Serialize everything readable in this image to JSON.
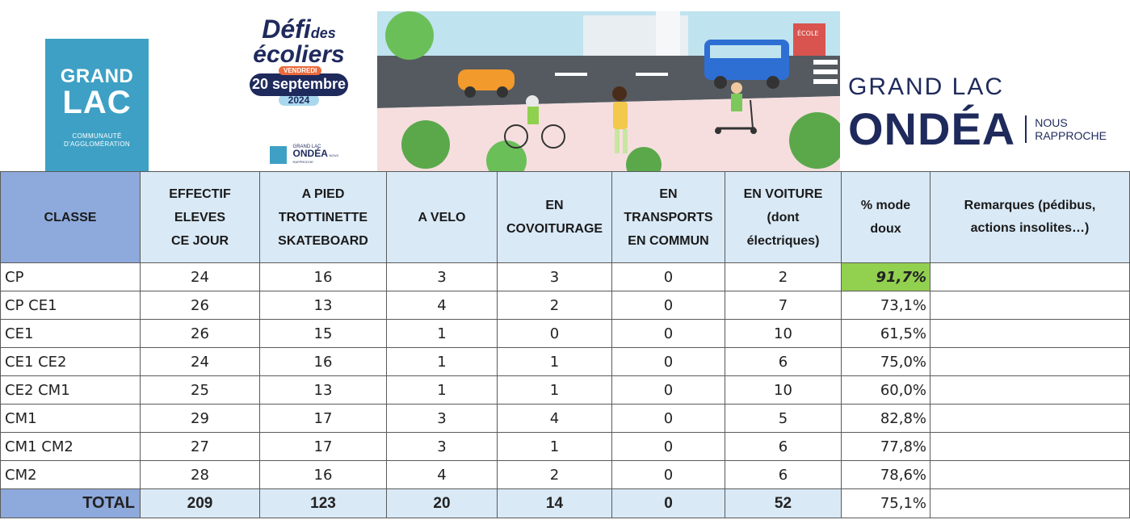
{
  "header": {
    "grand_lac_logo": {
      "line1": "GRAND",
      "line2": "LAC",
      "line3a": "COMMUNAUTÉ",
      "line3b": "D'AGGLOMÉRATION",
      "color": "#3ea0c4"
    },
    "defi_logo": {
      "defi": "Défi",
      "des": "des",
      "ecoliers": "écoliers",
      "day": "VENDREDI",
      "date": "20 septembre",
      "year": "2024",
      "mini_grand_lac": "GRAND LAC",
      "mini_ondea": "ONDÉA",
      "mini_nous": "NOUS RAPPROCHE"
    },
    "scene": {
      "school_sign": "ÉCOLE"
    },
    "ondea_logo": {
      "grand_lac": "GRAND LAC",
      "ondea": "ONDÉA",
      "nous": "NOUS",
      "rapproche": "RAPPROCHE",
      "color": "#1f2a5c"
    }
  },
  "table": {
    "columns": [
      [
        "CLASSE"
      ],
      [
        "EFFECTIF",
        "ELEVES",
        "CE JOUR"
      ],
      [
        "A PIED",
        "TROTTINETTE",
        "SKATEBOARD"
      ],
      [
        "A VELO"
      ],
      [
        "EN",
        "COVOITURAGE"
      ],
      [
        "EN",
        "TRANSPORTS",
        "EN COMMUN"
      ],
      [
        "EN VOITURE",
        "(dont",
        "électriques)"
      ],
      [
        "% mode",
        "doux"
      ],
      [
        "Remarques (pédibus,",
        "actions insolites…)"
      ]
    ],
    "rows": [
      {
        "classe": "CP",
        "effectif": "24",
        "pied": "16",
        "velo": "3",
        "covoit": "3",
        "transports": "0",
        "voiture": "2",
        "pct": "91,7%",
        "remarques": ""
      },
      {
        "classe": "CP CE1",
        "effectif": "26",
        "pied": "13",
        "velo": "4",
        "covoit": "2",
        "transports": "0",
        "voiture": "7",
        "pct": "73,1%",
        "remarques": ""
      },
      {
        "classe": "CE1",
        "effectif": "26",
        "pied": "15",
        "velo": "1",
        "covoit": "0",
        "transports": "0",
        "voiture": "10",
        "pct": "61,5%",
        "remarques": ""
      },
      {
        "classe": "CE1 CE2",
        "effectif": "24",
        "pied": "16",
        "velo": "1",
        "covoit": "1",
        "transports": "0",
        "voiture": "6",
        "pct": "75,0%",
        "remarques": ""
      },
      {
        "classe": "CE2 CM1",
        "effectif": "25",
        "pied": "13",
        "velo": "1",
        "covoit": "1",
        "transports": "0",
        "voiture": "10",
        "pct": "60,0%",
        "remarques": ""
      },
      {
        "classe": "CM1",
        "effectif": "29",
        "pied": "17",
        "velo": "3",
        "covoit": "4",
        "transports": "0",
        "voiture": "5",
        "pct": "82,8%",
        "remarques": ""
      },
      {
        "classe": "CM1 CM2",
        "effectif": "27",
        "pied": "17",
        "velo": "3",
        "covoit": "1",
        "transports": "0",
        "voiture": "6",
        "pct": "77,8%",
        "remarques": ""
      },
      {
        "classe": "CM2",
        "effectif": "28",
        "pied": "16",
        "velo": "4",
        "covoit": "2",
        "transports": "0",
        "voiture": "6",
        "pct": "78,6%",
        "remarques": ""
      }
    ],
    "total": {
      "label": "TOTAL",
      "effectif": "209",
      "pied": "123",
      "velo": "20",
      "covoit": "14",
      "transports": "0",
      "voiture": "52",
      "pct": "75,1%",
      "remarques": ""
    },
    "highlight_row": 0,
    "colors": {
      "header_bg": "#d9e9f6",
      "classe_header_bg": "#8ea9db",
      "best_pct_bg": "#92d050"
    }
  }
}
